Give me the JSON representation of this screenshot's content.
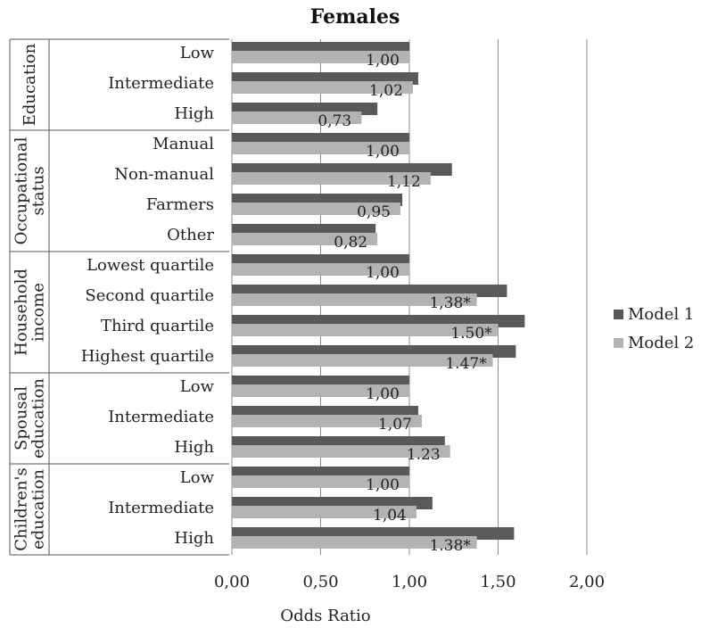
{
  "chart_data": {
    "type": "bar",
    "orientation": "horizontal",
    "title": "Females",
    "xlabel": "Odds Ratio",
    "xlim": [
      0,
      2
    ],
    "xticks": [
      "0,00",
      "0,50",
      "1,00",
      "1,50",
      "2,00"
    ],
    "xtick_values": [
      0,
      0.5,
      1.0,
      1.5,
      2.0
    ],
    "grid": "vertical",
    "legend_position": "right",
    "groups": [
      {
        "label_lines": [
          "Education"
        ],
        "categories": [
          "Low",
          "Intermediate",
          "High"
        ]
      },
      {
        "label_lines": [
          "Occupational",
          "status"
        ],
        "categories": [
          "Manual",
          "Non-manual",
          "Farmers",
          "Other"
        ]
      },
      {
        "label_lines": [
          "Household",
          "income"
        ],
        "categories": [
          "Lowest quartile",
          "Second quartile",
          "Third quartile",
          "Highest quartile"
        ]
      },
      {
        "label_lines": [
          "Spousal",
          "education"
        ],
        "categories": [
          "Low",
          "Intermediate",
          "High"
        ]
      },
      {
        "label_lines": [
          "Children's",
          "education"
        ],
        "categories": [
          "Low",
          "Intermediate",
          "High"
        ]
      }
    ],
    "series": [
      {
        "name": "Model 1",
        "color": "#595959",
        "values": [
          1.0,
          1.05,
          0.82,
          1.0,
          1.24,
          0.96,
          0.81,
          1.0,
          1.55,
          1.65,
          1.6,
          1.0,
          1.05,
          1.2,
          1.0,
          1.13,
          1.59
        ]
      },
      {
        "name": "Model 2",
        "color": "#b3b3b3",
        "values": [
          1.0,
          1.02,
          0.73,
          1.0,
          1.12,
          0.95,
          0.82,
          1.0,
          1.38,
          1.5,
          1.47,
          1.0,
          1.07,
          1.23,
          1.0,
          1.04,
          1.38
        ],
        "data_labels": [
          "1,00",
          "1,02",
          "0,73",
          "1,00",
          "1,12",
          "0,95",
          "0,82",
          "1,00",
          "1,38*",
          "1.50*",
          "1.47*",
          "1,00",
          "1,07",
          "1.23",
          "1,00",
          "1,04",
          "1.38*"
        ]
      }
    ]
  }
}
